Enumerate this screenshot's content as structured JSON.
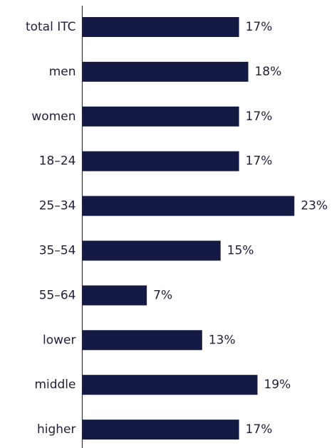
{
  "chart_data": {
    "type": "bar",
    "orientation": "horizontal",
    "categories": [
      "total ITC",
      "men",
      "women",
      "18–24",
      "25–34",
      "35–54",
      "55–64",
      "lower",
      "middle",
      "higher"
    ],
    "values": [
      17,
      18,
      17,
      17,
      23,
      15,
      7,
      13,
      19,
      17
    ],
    "value_labels": [
      "17%",
      "18%",
      "17%",
      "17%",
      "23%",
      "15%",
      "7%",
      "13%",
      "19%",
      "17%"
    ],
    "bar_color": "#141a44",
    "axis_color": "#333333",
    "title": "",
    "xlabel": "",
    "ylabel": "",
    "grid": false,
    "legend": false
  }
}
